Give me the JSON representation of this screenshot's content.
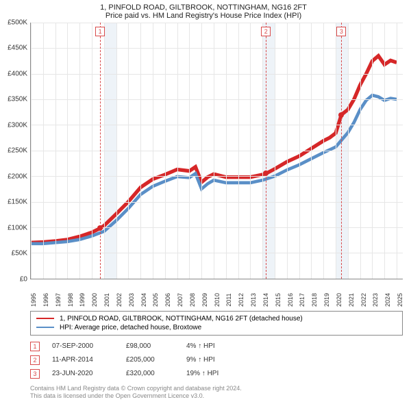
{
  "title_line1": "1, PINFOLD ROAD, GILTBROOK, NOTTINGHAM, NG16 2FT",
  "title_line2": "Price paid vs. HM Land Registry's House Price Index (HPI)",
  "chart": {
    "type": "line",
    "x_min": 1995,
    "x_max": 2025.5,
    "y_min": 0,
    "y_max": 500000,
    "y_ticks": [
      0,
      50000,
      100000,
      150000,
      200000,
      250000,
      300000,
      350000,
      400000,
      450000,
      500000
    ],
    "y_tick_labels": [
      "£0",
      "£50K",
      "£100K",
      "£150K",
      "£200K",
      "£250K",
      "£300K",
      "£350K",
      "£400K",
      "£450K",
      "£500K"
    ],
    "x_ticks": [
      1995,
      1996,
      1997,
      1998,
      1999,
      2000,
      2001,
      2002,
      2003,
      2004,
      2005,
      2006,
      2007,
      2008,
      2009,
      2010,
      2011,
      2012,
      2013,
      2014,
      2015,
      2016,
      2017,
      2018,
      2019,
      2020,
      2021,
      2022,
      2023,
      2024,
      2025
    ],
    "bands": [
      {
        "from": 2001,
        "to": 2002,
        "color": "#eef3f8"
      },
      {
        "from": 2014,
        "to": 2015,
        "color": "#eef3f8"
      },
      {
        "from": 2020,
        "to": 2021,
        "color": "#eef3f8"
      }
    ],
    "markers": [
      {
        "id": "1",
        "x": 2000.68
      },
      {
        "id": "2",
        "x": 2014.28
      },
      {
        "id": "3",
        "x": 2020.47
      }
    ],
    "series": [
      {
        "name": "price_paid",
        "color": "#d62728",
        "width": 1.6,
        "points": [
          [
            1995,
            70000
          ],
          [
            1996,
            71000
          ],
          [
            1997,
            73000
          ],
          [
            1998,
            76000
          ],
          [
            1999,
            82000
          ],
          [
            2000,
            90000
          ],
          [
            2000.68,
            98000
          ],
          [
            2001,
            103000
          ],
          [
            2002,
            126000
          ],
          [
            2003,
            150000
          ],
          [
            2004,
            178000
          ],
          [
            2005,
            194000
          ],
          [
            2006,
            203000
          ],
          [
            2007,
            213000
          ],
          [
            2008,
            210000
          ],
          [
            2008.5,
            218000
          ],
          [
            2009,
            188000
          ],
          [
            2009.5,
            198000
          ],
          [
            2010,
            204000
          ],
          [
            2011,
            198000
          ],
          [
            2012,
            198000
          ],
          [
            2013,
            198000
          ],
          [
            2014,
            203000
          ],
          [
            2014.28,
            205000
          ],
          [
            2015,
            214000
          ],
          [
            2016,
            228000
          ],
          [
            2017,
            239000
          ],
          [
            2018,
            254000
          ],
          [
            2019,
            269000
          ],
          [
            2019.5,
            275000
          ],
          [
            2020,
            284000
          ],
          [
            2020.47,
            320000
          ],
          [
            2021,
            330000
          ],
          [
            2021.5,
            350000
          ],
          [
            2022,
            378000
          ],
          [
            2022.5,
            400000
          ],
          [
            2023,
            425000
          ],
          [
            2023.5,
            435000
          ],
          [
            2024,
            418000
          ],
          [
            2024.5,
            426000
          ],
          [
            2025,
            422000
          ]
        ],
        "dots": [
          [
            2000.68,
            98000
          ],
          [
            2014.28,
            205000
          ],
          [
            2020.47,
            320000
          ]
        ]
      },
      {
        "name": "hpi",
        "color": "#5a8fc7",
        "width": 1.4,
        "points": [
          [
            1995,
            68000
          ],
          [
            1996,
            68000
          ],
          [
            1997,
            70000
          ],
          [
            1998,
            72000
          ],
          [
            1999,
            76000
          ],
          [
            2000,
            83000
          ],
          [
            2001,
            92000
          ],
          [
            2002,
            113000
          ],
          [
            2003,
            137000
          ],
          [
            2004,
            164000
          ],
          [
            2005,
            180000
          ],
          [
            2006,
            190000
          ],
          [
            2007,
            199000
          ],
          [
            2008,
            197000
          ],
          [
            2008.5,
            205000
          ],
          [
            2009,
            175000
          ],
          [
            2009.5,
            185000
          ],
          [
            2010,
            192000
          ],
          [
            2011,
            187000
          ],
          [
            2012,
            187000
          ],
          [
            2013,
            187000
          ],
          [
            2014,
            192000
          ],
          [
            2015,
            200000
          ],
          [
            2016,
            212000
          ],
          [
            2017,
            222000
          ],
          [
            2018,
            234000
          ],
          [
            2019,
            246000
          ],
          [
            2020,
            257000
          ],
          [
            2021,
            285000
          ],
          [
            2021.5,
            305000
          ],
          [
            2022,
            330000
          ],
          [
            2022.5,
            348000
          ],
          [
            2023,
            358000
          ],
          [
            2023.5,
            355000
          ],
          [
            2024,
            348000
          ],
          [
            2024.5,
            352000
          ],
          [
            2025,
            350000
          ]
        ]
      }
    ],
    "grid_color": "#e6e6e6",
    "background_color": "#ffffff"
  },
  "legend": [
    {
      "color": "#d62728",
      "label": "1, PINFOLD ROAD, GILTBROOK, NOTTINGHAM, NG16 2FT (detached house)"
    },
    {
      "color": "#5a8fc7",
      "label": "HPI: Average price, detached house, Broxtowe"
    }
  ],
  "sales": [
    {
      "id": "1",
      "date": "07-SEP-2000",
      "price": "£98,000",
      "hpi": "4% ↑ HPI"
    },
    {
      "id": "2",
      "date": "11-APR-2014",
      "price": "£205,000",
      "hpi": "9% ↑ HPI"
    },
    {
      "id": "3",
      "date": "23-JUN-2020",
      "price": "£320,000",
      "hpi": "19% ↑ HPI"
    }
  ],
  "footer_line1": "Contains HM Land Registry data © Crown copyright and database right 2024.",
  "footer_line2": "This data is licensed under the Open Government Licence v3.0."
}
